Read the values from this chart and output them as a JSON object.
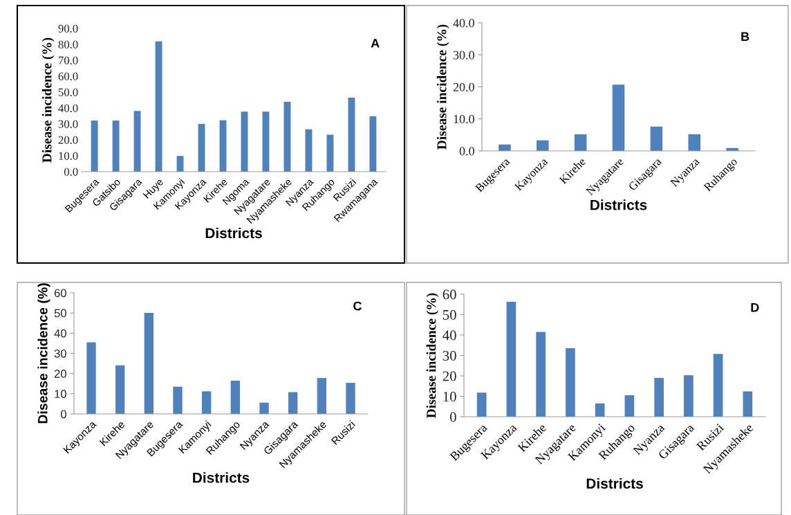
{
  "chart_data": [
    {
      "type": "bar",
      "xlabel": "Districts",
      "ylabel": "Disease incidence (%)",
      "annotations": [
        "A"
      ],
      "color": "#4f81bd",
      "categories": [
        "Bugesera",
        "Gatsibo",
        "Gisagara",
        "Huye",
        "Kamonyi",
        "Kayonza",
        "Kirehe",
        "Ngoma",
        "Nyagatare",
        "Nyamasheke",
        "Nyanza",
        "Ruhango",
        "Rusizi",
        "Rwamagana"
      ],
      "values": [
        32.1,
        32.1,
        38.2,
        81.8,
        9.9,
        30.0,
        32.3,
        37.7,
        37.7,
        43.9,
        26.6,
        23.2,
        46.5,
        34.8
      ],
      "ylim": [
        0,
        90
      ],
      "yticks": [
        {
          "value": 0,
          "label": "0.0"
        },
        {
          "value": 10,
          "label": "10.0"
        },
        {
          "value": 20,
          "label": "20.0"
        },
        {
          "value": 30,
          "label": "30.0"
        },
        {
          "value": 40,
          "label": "40.0"
        },
        {
          "value": 50,
          "label": "50.0"
        },
        {
          "value": 60,
          "label": "60.0"
        },
        {
          "value": 70,
          "label": "70.0"
        },
        {
          "value": 80,
          "label": "80.0"
        },
        {
          "value": 90,
          "label": "90.0"
        }
      ]
    },
    {
      "type": "bar",
      "xlabel": "Districts",
      "ylabel": "Disease incidence (%)",
      "annotations": [
        "B"
      ],
      "color": "#4f81bd",
      "categories": [
        "Bugesera",
        "Kayonza",
        "Kirehe",
        "Nyagatare",
        "Gisagara",
        "Nyanza",
        "Ruhango"
      ],
      "values": [
        2.0,
        3.3,
        5.2,
        20.7,
        7.6,
        5.2,
        0.9
      ],
      "ylim": [
        0,
        40
      ],
      "yticks": [
        {
          "value": 0,
          "label": "0.0"
        },
        {
          "value": 10,
          "label": "10.0"
        },
        {
          "value": 20,
          "label": "20.0"
        },
        {
          "value": 30,
          "label": "30.0"
        },
        {
          "value": 40,
          "label": "40.0"
        }
      ]
    },
    {
      "type": "bar",
      "xlabel": "Districts",
      "ylabel": "Disease incidence (%)",
      "annotations": [
        "C"
      ],
      "color": "#4f81bd",
      "categories": [
        "Kayonza",
        "Kirehe",
        "Nyagatare",
        "Bugesera",
        "Kamonyi",
        "Ruhango",
        "Nyanza",
        "Gisagara",
        "Nyamasheke",
        "Rusizi"
      ],
      "values": [
        35.5,
        24.1,
        50.1,
        13.5,
        11.2,
        16.5,
        5.6,
        10.8,
        17.8,
        15.4
      ],
      "ylim": [
        0,
        60
      ],
      "yticks": [
        0,
        10,
        20,
        30,
        40,
        50,
        60
      ]
    },
    {
      "type": "bar",
      "xlabel": "Districts",
      "ylabel": "Disease incidence (%)",
      "annotations": [
        "D"
      ],
      "color": "#4f81bd",
      "categories": [
        "Bugesera",
        "Kayonza",
        "Kirehe",
        "Nyagatare",
        "Kamonyi",
        "Ruhango",
        "Nyanza",
        "Gisagara",
        "Rusizi",
        "Nyamasheke"
      ],
      "values": [
        11.8,
        56.3,
        41.5,
        33.6,
        6.5,
        10.5,
        19.0,
        20.3,
        30.8,
        12.4
      ],
      "ylim": [
        0,
        60
      ],
      "yticks": [
        0,
        10,
        20,
        30,
        40,
        50,
        60
      ]
    }
  ]
}
